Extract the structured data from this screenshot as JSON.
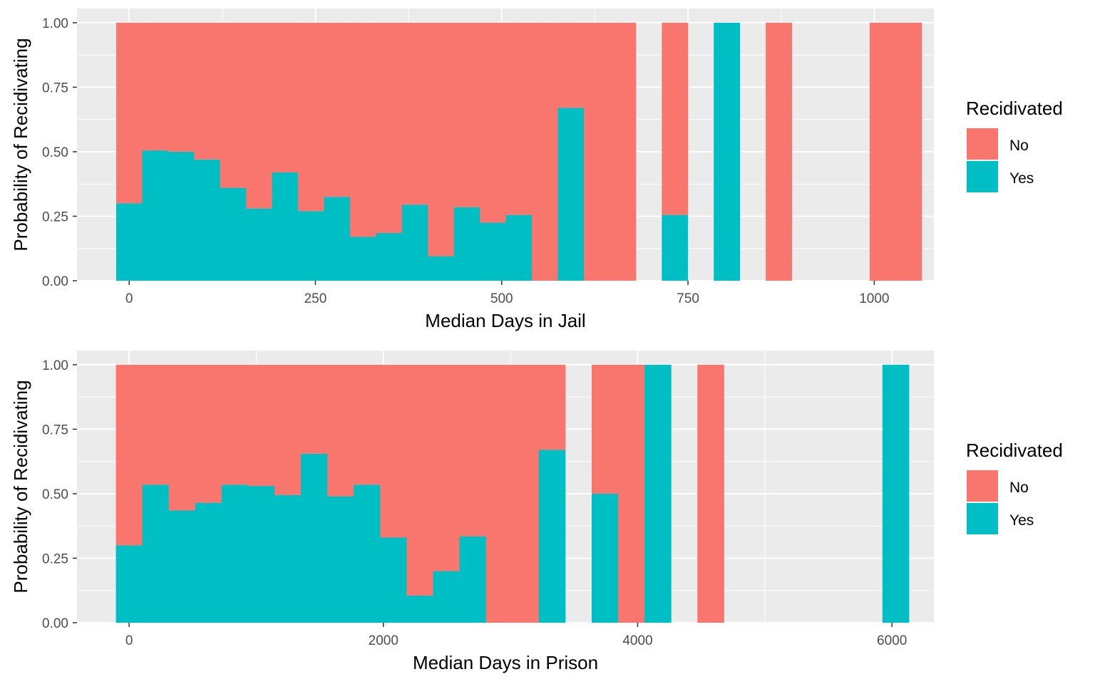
{
  "colors": {
    "no": "#F8766D",
    "yes": "#00BFC4",
    "panel_bg": "#EBEBEB",
    "grid": "#FFFFFF",
    "tick_text": "#4D4D4D"
  },
  "chart_data": [
    {
      "type": "bar",
      "stacked": "fill",
      "xlabel": "Median Days in Jail",
      "ylabel": "Probability of Recidivating",
      "xlim": [
        -70,
        1080
      ],
      "ylim": [
        0,
        1.055
      ],
      "x_ticks": [
        0,
        250,
        500,
        750,
        1000
      ],
      "x_tick_labels": [
        "0",
        "250",
        "500",
        "750",
        "1000"
      ],
      "y_ticks": [
        0,
        0.25,
        0.5,
        0.75,
        1
      ],
      "y_tick_labels": [
        "0.00",
        "0.25",
        "0.50",
        "0.75",
        "1.00"
      ],
      "grid": true,
      "bin_width": 34.87,
      "x": [
        0,
        34.87,
        69.74,
        104.61,
        139.48,
        174.35,
        209.22,
        244.09,
        278.96,
        313.83,
        348.7,
        383.57,
        418.44,
        453.31,
        488.18,
        523.05,
        557.92,
        592.79,
        627.66,
        662.53,
        732.27,
        801.99,
        871.71,
        1011.19
      ],
      "series": [
        {
          "name": "Yes",
          "values": [
            0.3,
            0.505,
            0.5,
            0.47,
            0.36,
            0.28,
            0.42,
            0.27,
            0.325,
            0.17,
            0.185,
            0.295,
            0.095,
            0.285,
            0.225,
            0.255,
            0.0,
            0.67,
            0.0,
            0.0,
            0.255,
            1.0,
            0.0,
            0.0
          ]
        },
        {
          "name": "No",
          "values": [
            0.7,
            0.495,
            0.5,
            0.53,
            0.64,
            0.72,
            0.58,
            0.73,
            0.675,
            0.83,
            0.815,
            0.705,
            0.905,
            0.715,
            0.775,
            0.745,
            1.0,
            0.33,
            1.0,
            1.0,
            0.745,
            0.0,
            1.0,
            1.0
          ]
        }
      ],
      "extra_width_last_bin": 2,
      "legend": {
        "title": "Recidivated",
        "entries": [
          "No",
          "Yes"
        ],
        "position": "right"
      }
    },
    {
      "type": "bar",
      "stacked": "fill",
      "xlabel": "Median Days in Prison",
      "ylabel": "Probability of Recidivating",
      "xlim": [
        -410,
        6330
      ],
      "ylim": [
        0,
        1.055
      ],
      "x_ticks": [
        0,
        2000,
        4000,
        6000
      ],
      "x_tick_labels": [
        "0",
        "2000",
        "4000",
        "6000"
      ],
      "y_ticks": [
        0,
        0.25,
        0.5,
        0.75,
        1
      ],
      "y_tick_labels": [
        "0.00",
        "0.25",
        "0.50",
        "0.75",
        "1.00"
      ],
      "grid": true,
      "bin_width": 207.9,
      "x": [
        0,
        207.9,
        415.8,
        623.7,
        831.6,
        1039.5,
        1247.4,
        1455.3,
        1663.2,
        1871.1,
        2079.0,
        2286.9,
        2494.8,
        2702.7,
        2910.6,
        3118.5,
        3326.4,
        3742.2,
        3950.1,
        4158.0,
        4573.8,
        6029.1
      ],
      "series": [
        {
          "name": "Yes",
          "values": [
            0.3,
            0.535,
            0.435,
            0.465,
            0.535,
            0.53,
            0.495,
            0.655,
            0.49,
            0.535,
            0.33,
            0.105,
            0.2,
            0.335,
            0.0,
            0.0,
            0.67,
            0.5,
            0.0,
            1.0,
            0.0,
            1.0
          ]
        },
        {
          "name": "No",
          "values": [
            0.7,
            0.465,
            0.565,
            0.535,
            0.465,
            0.47,
            0.505,
            0.345,
            0.51,
            0.465,
            0.67,
            0.895,
            0.8,
            0.665,
            1.0,
            1.0,
            0.33,
            0.5,
            1.0,
            0.0,
            1.0,
            0.0
          ]
        }
      ],
      "legend": {
        "title": "Recidivated",
        "entries": [
          "No",
          "Yes"
        ],
        "position": "right"
      }
    }
  ]
}
